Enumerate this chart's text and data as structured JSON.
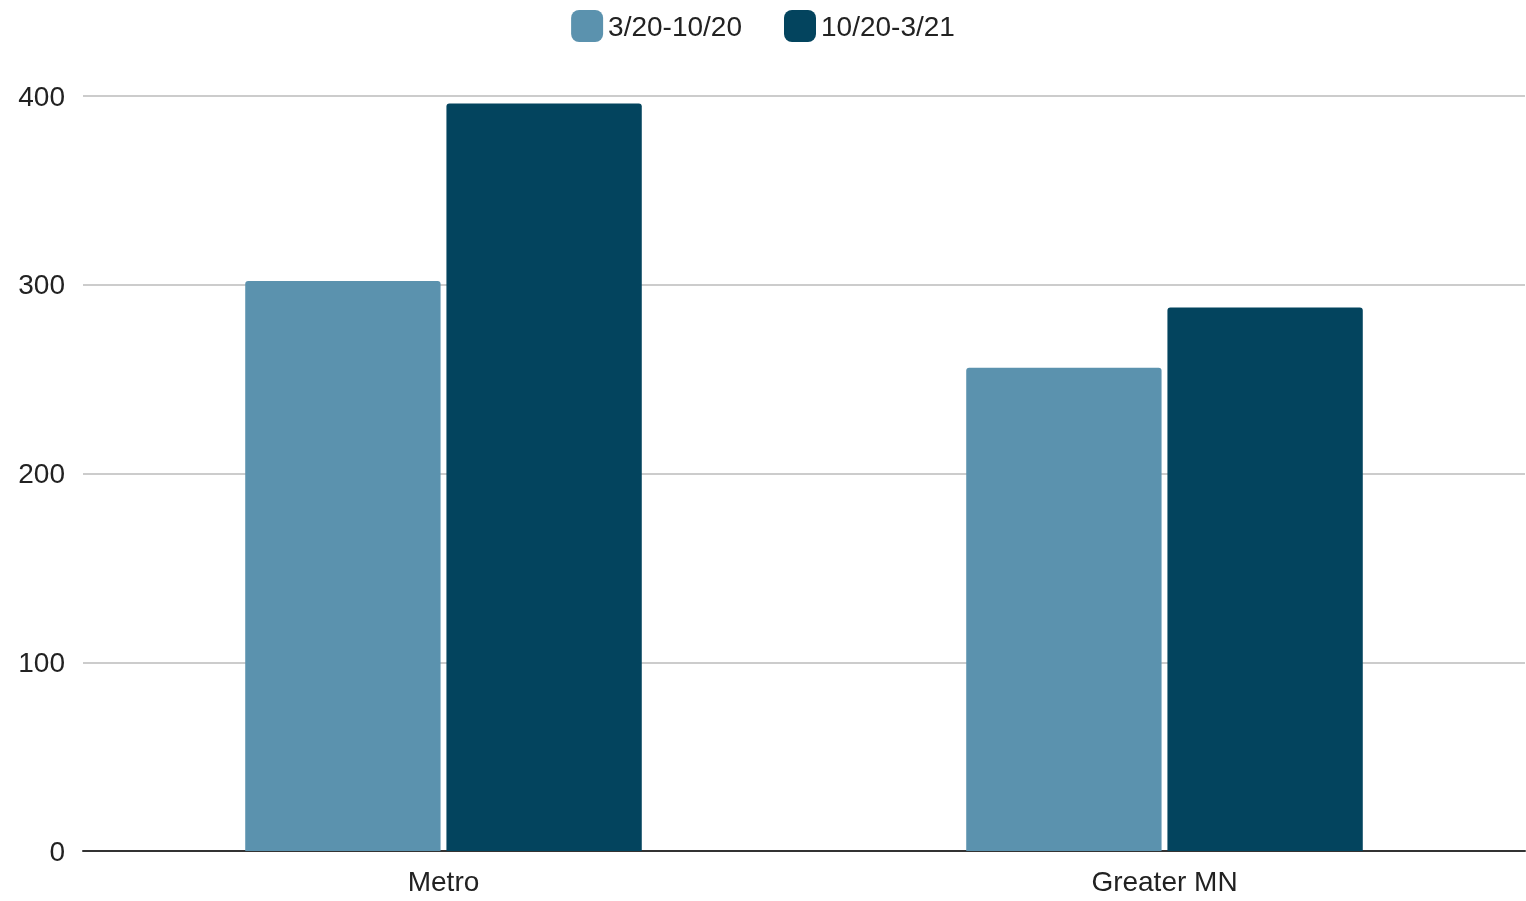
{
  "chart_data": {
    "type": "bar",
    "categories": [
      "Metro",
      "Greater MN"
    ],
    "series": [
      {
        "name": "3/20-10/20",
        "color": "#5b92ae",
        "values": [
          302,
          256
        ]
      },
      {
        "name": "10/20-3/21",
        "color": "#03445e",
        "values": [
          396,
          288
        ]
      }
    ],
    "ylim": [
      0,
      400
    ],
    "yticks": [
      0,
      100,
      200,
      300,
      400
    ],
    "grid": "y",
    "legend": "top"
  }
}
